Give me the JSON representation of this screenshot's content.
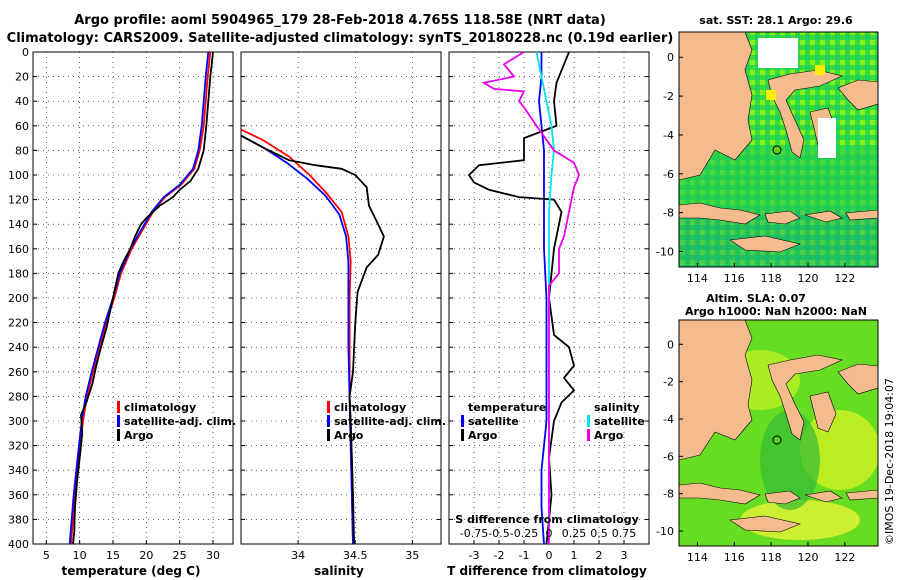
{
  "header": {
    "line1": "Argo profile: aoml 5904965_179 28-Feb-2018 4.765S 118.58E (NRT data)",
    "line2": "Climatology: CARS2009. Satellite-adjusted climatology: synTS_20180228.nc (0.19d earlier)"
  },
  "colors": {
    "climatology": "#ff0000",
    "satellite": "#0000ff",
    "argo": "#000000",
    "sat_salinity": "#00e5ee",
    "argo_salinity": "#ee00ee",
    "land": "#f4bc8e"
  },
  "depth_ticks": [
    "0",
    "20",
    "40",
    "60",
    "80",
    "100",
    "120",
    "140",
    "160",
    "180",
    "200",
    "220",
    "240",
    "260",
    "280",
    "300",
    "320",
    "340",
    "360",
    "380",
    "400"
  ],
  "chart_data": [
    {
      "type": "line",
      "name": "temperature",
      "xlabel": "temperature (deg C)",
      "xlim": [
        3,
        33
      ],
      "ylim": [
        400,
        0
      ],
      "xticks": [
        "5",
        "10",
        "15",
        "20",
        "25",
        "30"
      ],
      "legend": [
        "climatology",
        "satellite-adj. clim.",
        "Argo"
      ],
      "series": [
        {
          "name": "climatology",
          "color": "#ff0000",
          "points": [
            [
              29.6,
              0
            ],
            [
              29.4,
              10
            ],
            [
              29.2,
              20
            ],
            [
              28.9,
              40
            ],
            [
              28.6,
              60
            ],
            [
              28.0,
              80
            ],
            [
              27.2,
              95
            ],
            [
              25.2,
              108
            ],
            [
              22.8,
              118
            ],
            [
              21.0,
              130
            ],
            [
              19.4,
              145
            ],
            [
              17.8,
              160
            ],
            [
              16.2,
              180
            ],
            [
              15.2,
              200
            ],
            [
              14.0,
              220
            ],
            [
              13.0,
              240
            ],
            [
              12.0,
              260
            ],
            [
              11.1,
              280
            ],
            [
              10.5,
              300
            ],
            [
              10.1,
              320
            ],
            [
              9.7,
              340
            ],
            [
              9.3,
              360
            ],
            [
              9.0,
              380
            ],
            [
              8.7,
              400
            ]
          ]
        },
        {
          "name": "satellite-adj. clim.",
          "color": "#0000ff",
          "points": [
            [
              29.3,
              0
            ],
            [
              29.1,
              10
            ],
            [
              28.9,
              20
            ],
            [
              28.6,
              40
            ],
            [
              28.3,
              60
            ],
            [
              27.8,
              80
            ],
            [
              27.0,
              95
            ],
            [
              25.0,
              108
            ],
            [
              22.6,
              118
            ],
            [
              20.8,
              130
            ],
            [
              19.2,
              145
            ],
            [
              17.6,
              160
            ],
            [
              16.0,
              180
            ],
            [
              15.0,
              200
            ],
            [
              13.8,
              220
            ],
            [
              12.8,
              240
            ],
            [
              11.8,
              260
            ],
            [
              10.9,
              280
            ],
            [
              10.3,
              300
            ],
            [
              9.9,
              320
            ],
            [
              9.5,
              340
            ],
            [
              9.1,
              360
            ],
            [
              8.8,
              380
            ],
            [
              8.5,
              400
            ]
          ]
        },
        {
          "name": "Argo",
          "color": "#000000",
          "points": [
            [
              30.0,
              0
            ],
            [
              29.8,
              10
            ],
            [
              29.6,
              20
            ],
            [
              29.3,
              40
            ],
            [
              29.0,
              60
            ],
            [
              28.6,
              80
            ],
            [
              27.8,
              95
            ],
            [
              26.6,
              105
            ],
            [
              25.0,
              112
            ],
            [
              24.0,
              118
            ],
            [
              22.0,
              125
            ],
            [
              20.0,
              135
            ],
            [
              19.2,
              140
            ],
            [
              18.3,
              150
            ],
            [
              17.6,
              160
            ],
            [
              16.6,
              170
            ],
            [
              15.8,
              180
            ],
            [
              15.2,
              195
            ],
            [
              14.6,
              210
            ],
            [
              14.0,
              225
            ],
            [
              13.2,
              240
            ],
            [
              12.5,
              255
            ],
            [
              11.9,
              270
            ],
            [
              11.0,
              285
            ],
            [
              10.2,
              295
            ],
            [
              10.4,
              310
            ],
            [
              10.0,
              330
            ],
            [
              9.6,
              350
            ],
            [
              9.3,
              370
            ],
            [
              9.2,
              390
            ],
            [
              9.0,
              400
            ]
          ]
        }
      ]
    },
    {
      "type": "line",
      "name": "salinity",
      "xlabel": "salinity",
      "xlim": [
        33.5,
        35.25
      ],
      "ylim": [
        400,
        0
      ],
      "xticks": [
        "34",
        "34.5",
        "35"
      ],
      "legend": [
        "climatology",
        "satellite-adj. clim.",
        "Argo"
      ],
      "series": [
        {
          "name": "climatology",
          "color": "#ff0000",
          "points": [
            [
              33.5,
              63
            ],
            [
              33.7,
              72
            ],
            [
              33.92,
              85
            ],
            [
              34.1,
              100
            ],
            [
              34.25,
              115
            ],
            [
              34.38,
              130
            ],
            [
              34.44,
              150
            ],
            [
              34.46,
              170
            ],
            [
              34.45,
              200
            ],
            [
              34.45,
              240
            ],
            [
              34.45,
              280
            ],
            [
              34.46,
              320
            ],
            [
              34.47,
              360
            ],
            [
              34.48,
              400
            ]
          ]
        },
        {
          "name": "satellite-adj. clim.",
          "color": "#0000ff",
          "points": [
            [
              33.5,
              68
            ],
            [
              33.72,
              79
            ],
            [
              33.9,
              90
            ],
            [
              34.08,
              103
            ],
            [
              34.24,
              117
            ],
            [
              34.36,
              132
            ],
            [
              34.42,
              150
            ],
            [
              34.44,
              170
            ],
            [
              34.44,
              200
            ],
            [
              34.44,
              240
            ],
            [
              34.45,
              280
            ],
            [
              34.46,
              320
            ],
            [
              34.47,
              360
            ],
            [
              34.48,
              400
            ]
          ]
        },
        {
          "name": "Argo",
          "color": "#000000",
          "points": [
            [
              33.5,
              68
            ],
            [
              33.7,
              78
            ],
            [
              33.92,
              88
            ],
            [
              34.15,
              92
            ],
            [
              34.38,
              95
            ],
            [
              34.5,
              100
            ],
            [
              34.6,
              110
            ],
            [
              34.62,
              125
            ],
            [
              34.7,
              140
            ],
            [
              34.75,
              150
            ],
            [
              34.7,
              165
            ],
            [
              34.6,
              175
            ],
            [
              34.52,
              195
            ],
            [
              34.5,
              220
            ],
            [
              34.48,
              260
            ],
            [
              34.45,
              280
            ],
            [
              34.46,
              300
            ],
            [
              34.47,
              330
            ],
            [
              34.48,
              360
            ],
            [
              34.49,
              400
            ]
          ]
        }
      ]
    },
    {
      "type": "line",
      "name": "difference",
      "xlabel": "T difference from climatology",
      "secondary_xlabel": "S difference from climatology",
      "xlim": [
        -4,
        4
      ],
      "ylim": [
        400,
        0
      ],
      "xticks": [
        "-3",
        "-2",
        "-1",
        "0",
        "1",
        "2",
        "3"
      ],
      "secondary_xticks": [
        "-0.75",
        "-0.5",
        "-0.25",
        "0",
        "0.25",
        "0.5",
        "0.75"
      ],
      "legend_temperature": [
        "temperature",
        "satellite",
        "Argo"
      ],
      "legend_salinity": [
        "salinity",
        "satellite",
        "Argo"
      ],
      "series": [
        {
          "name": "temperature satellite",
          "color": "#0000ff",
          "points": [
            [
              -0.3,
              0
            ],
            [
              -0.3,
              20
            ],
            [
              -0.4,
              40
            ],
            [
              -0.3,
              60
            ],
            [
              -0.2,
              80
            ],
            [
              -0.2,
              100
            ],
            [
              -0.2,
              130
            ],
            [
              -0.2,
              160
            ],
            [
              -0.1,
              200
            ],
            [
              -0.1,
              240
            ],
            [
              -0.1,
              280
            ],
            [
              -0.1,
              300
            ],
            [
              -0.2,
              320
            ],
            [
              -0.3,
              340
            ],
            [
              -0.3,
              370
            ],
            [
              -0.2,
              400
            ]
          ]
        },
        {
          "name": "temperature Argo",
          "color": "#000000",
          "points": [
            [
              0.8,
              0
            ],
            [
              0.6,
              10
            ],
            [
              0.3,
              25
            ],
            [
              0.2,
              40
            ],
            [
              0.3,
              60
            ],
            [
              -1.0,
              70
            ],
            [
              -1.0,
              88
            ],
            [
              -2.8,
              92
            ],
            [
              -3.2,
              100
            ],
            [
              -3.0,
              106
            ],
            [
              -2.4,
              112
            ],
            [
              -1.2,
              118
            ],
            [
              0.2,
              120
            ],
            [
              0.5,
              130
            ],
            [
              0.2,
              160
            ],
            [
              0.0,
              200
            ],
            [
              0.2,
              230
            ],
            [
              0.8,
              240
            ],
            [
              1.0,
              255
            ],
            [
              0.6,
              265
            ],
            [
              1.0,
              275
            ],
            [
              0.5,
              285
            ],
            [
              0.2,
              300
            ],
            [
              0.0,
              330
            ],
            [
              0.1,
              360
            ],
            [
              -0.1,
              400
            ]
          ]
        },
        {
          "name": "salinity satellite",
          "color": "#00e5ee",
          "points": [
            [
              -0.5,
              0
            ],
            [
              -0.3,
              20
            ],
            [
              -0.1,
              40
            ],
            [
              0.1,
              60
            ],
            [
              0.2,
              80
            ],
            [
              0.1,
              100
            ],
            [
              0.0,
              130
            ],
            [
              0.0,
              160
            ],
            [
              0.0,
              200
            ],
            [
              0.0,
              300
            ],
            [
              0.0,
              400
            ]
          ]
        },
        {
          "name": "salinity Argo",
          "color": "#ee00ee",
          "points": [
            [
              -1.0,
              0
            ],
            [
              -1.8,
              10
            ],
            [
              -1.4,
              20
            ],
            [
              -2.6,
              25
            ],
            [
              -2.2,
              30
            ],
            [
              -1.0,
              32
            ],
            [
              -1.2,
              40
            ],
            [
              -1.0,
              45
            ],
            [
              -0.5,
              60
            ],
            [
              0.2,
              80
            ],
            [
              1.0,
              90
            ],
            [
              1.2,
              100
            ],
            [
              1.0,
              110
            ],
            [
              0.8,
              130
            ],
            [
              0.6,
              150
            ],
            [
              0.4,
              160
            ],
            [
              0.4,
              180
            ],
            [
              0.0,
              190
            ],
            [
              0.0,
              260
            ],
            [
              0.0,
              400
            ]
          ]
        }
      ]
    }
  ],
  "map_top": {
    "title": "sat. SST: 28.1  Argo: 29.6",
    "xticks": [
      "114",
      "116",
      "118",
      "120",
      "122"
    ],
    "yticks": [
      "0",
      "-2",
      "-4",
      "-6",
      "-8",
      "-10"
    ]
  },
  "map_bottom": {
    "title1": "Altim. SLA: 0.07",
    "title2": "Argo h1000: NaN  h2000: NaN",
    "xticks": [
      "114",
      "116",
      "118",
      "120",
      "122"
    ],
    "yticks": [
      "0",
      "-2",
      "-4",
      "-6",
      "-8",
      "-10"
    ]
  },
  "watermark": "©IMOS 19-Dec-2018 19:04:07"
}
